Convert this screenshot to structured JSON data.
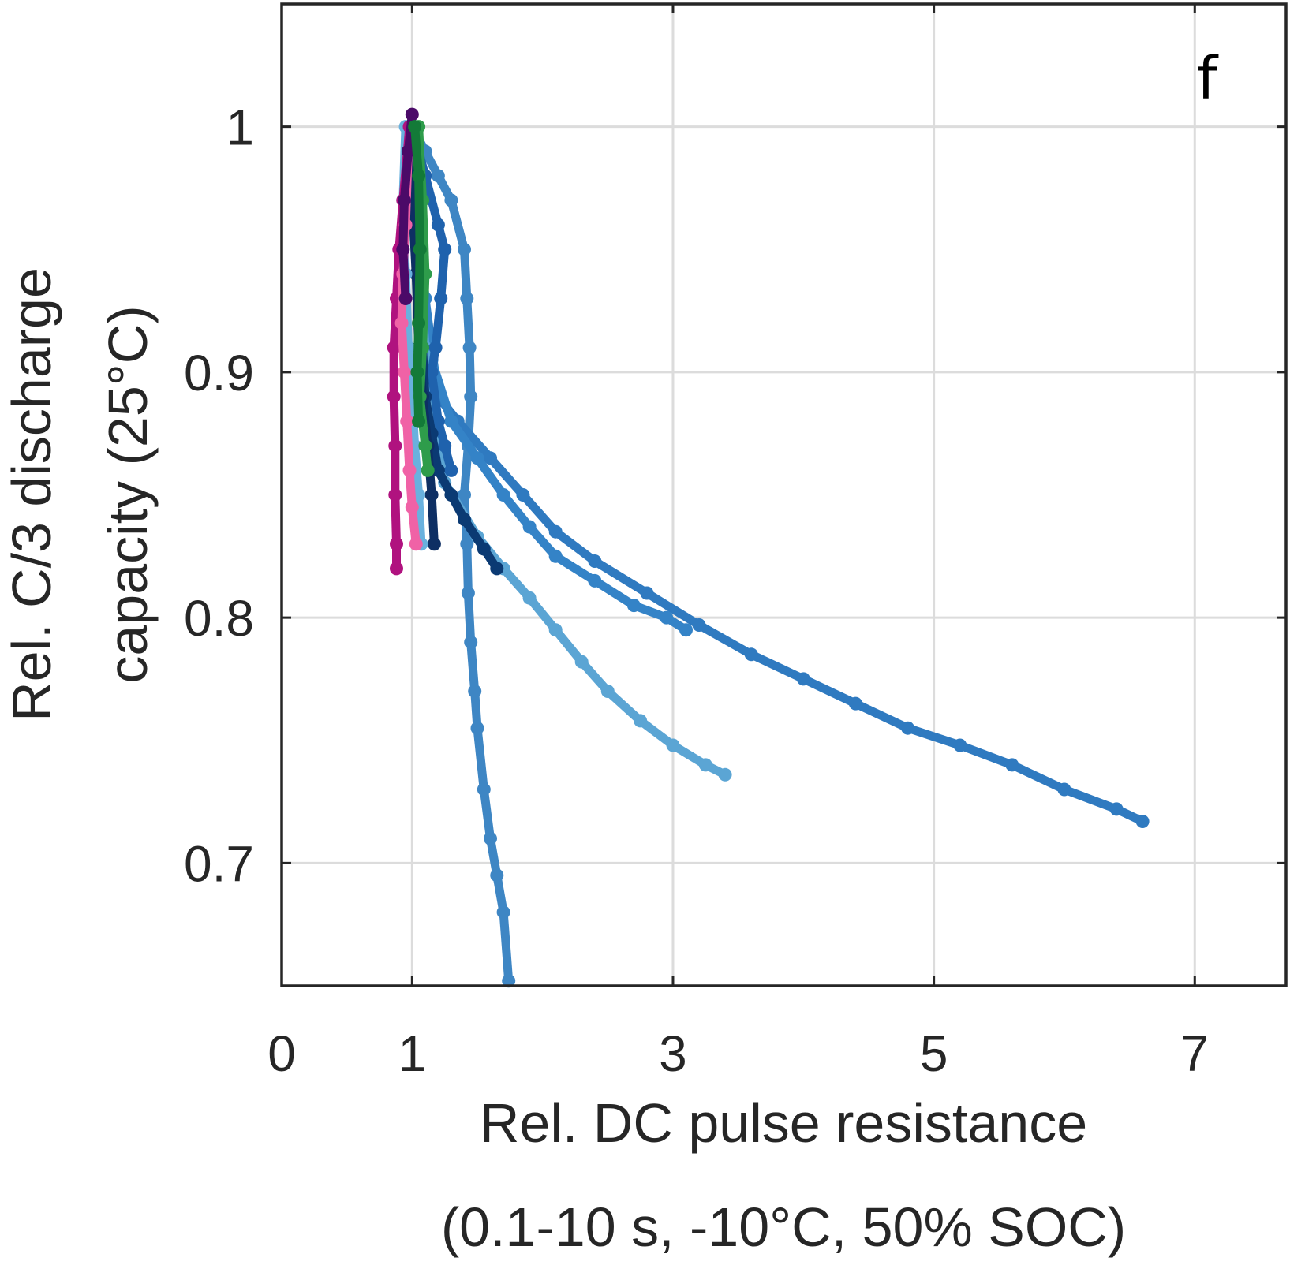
{
  "chart_data": {
    "type": "line",
    "panel_label": "f",
    "xlabel_lines": [
      "Rel. DC pulse resistance",
      "(0.1-10 s, -10°C, 50% SOC)"
    ],
    "ylabel_lines": [
      "Rel. C/3 discharge",
      "capacity (25°C)"
    ],
    "xlim": [
      0,
      7.7
    ],
    "ylim": [
      0.65,
      1.05
    ],
    "x_ticks": [
      0,
      1,
      3,
      5,
      7
    ],
    "x_tick_labels": [
      "0",
      "1",
      "3",
      "5",
      "7"
    ],
    "y_ticks": [
      0.7,
      0.8,
      0.9,
      1.0
    ],
    "y_tick_labels": [
      "0.7",
      "0.8",
      "0.9",
      "1"
    ],
    "grid": true,
    "series": [
      {
        "color": "#3e86c4",
        "points": [
          [
            1.0,
            1.0
          ],
          [
            1.1,
            0.99
          ],
          [
            1.2,
            0.98
          ],
          [
            1.3,
            0.97
          ],
          [
            1.4,
            0.95
          ],
          [
            1.42,
            0.93
          ],
          [
            1.44,
            0.91
          ],
          [
            1.45,
            0.89
          ],
          [
            1.43,
            0.87
          ],
          [
            1.4,
            0.85
          ],
          [
            1.42,
            0.83
          ],
          [
            1.43,
            0.81
          ],
          [
            1.45,
            0.79
          ],
          [
            1.48,
            0.77
          ],
          [
            1.5,
            0.755
          ],
          [
            1.55,
            0.73
          ],
          [
            1.6,
            0.71
          ],
          [
            1.65,
            0.695
          ],
          [
            1.7,
            0.68
          ],
          [
            1.74,
            0.652
          ]
        ]
      },
      {
        "color": "#2f7ac0",
        "points": [
          [
            1.0,
            1.0
          ],
          [
            1.05,
            0.96
          ],
          [
            1.1,
            0.93
          ],
          [
            1.15,
            0.91
          ],
          [
            1.2,
            0.89
          ],
          [
            1.35,
            0.88
          ],
          [
            1.6,
            0.865
          ],
          [
            1.85,
            0.85
          ],
          [
            2.1,
            0.835
          ],
          [
            2.4,
            0.823
          ],
          [
            2.8,
            0.81
          ],
          [
            3.2,
            0.797
          ],
          [
            3.6,
            0.785
          ],
          [
            4.0,
            0.775
          ],
          [
            4.4,
            0.765
          ],
          [
            4.8,
            0.755
          ],
          [
            5.2,
            0.748
          ],
          [
            5.6,
            0.74
          ],
          [
            6.0,
            0.73
          ],
          [
            6.4,
            0.722
          ],
          [
            6.6,
            0.717
          ]
        ]
      },
      {
        "color": "#3483c7",
        "points": [
          [
            1.0,
            1.0
          ],
          [
            1.05,
            0.96
          ],
          [
            1.1,
            0.93
          ],
          [
            1.15,
            0.905
          ],
          [
            1.3,
            0.88
          ],
          [
            1.5,
            0.865
          ],
          [
            1.7,
            0.85
          ],
          [
            1.9,
            0.837
          ],
          [
            2.1,
            0.825
          ],
          [
            2.4,
            0.815
          ],
          [
            2.7,
            0.805
          ],
          [
            2.95,
            0.8
          ],
          [
            3.1,
            0.795
          ]
        ]
      },
      {
        "color": "#5ba5d4",
        "points": [
          [
            1.0,
            1.0
          ],
          [
            1.05,
            0.95
          ],
          [
            1.1,
            0.91
          ],
          [
            1.15,
            0.88
          ],
          [
            1.25,
            0.855
          ],
          [
            1.5,
            0.833
          ],
          [
            1.7,
            0.82
          ],
          [
            1.9,
            0.808
          ],
          [
            2.1,
            0.795
          ],
          [
            2.3,
            0.782
          ],
          [
            2.5,
            0.77
          ],
          [
            2.75,
            0.758
          ],
          [
            3.0,
            0.748
          ],
          [
            3.25,
            0.74
          ],
          [
            3.4,
            0.736
          ]
        ]
      },
      {
        "color": "#1f62ad",
        "points": [
          [
            1.0,
            1.0
          ],
          [
            1.1,
            0.98
          ],
          [
            1.2,
            0.96
          ],
          [
            1.25,
            0.95
          ],
          [
            1.22,
            0.93
          ],
          [
            1.18,
            0.91
          ],
          [
            1.15,
            0.9
          ],
          [
            1.2,
            0.88
          ],
          [
            1.25,
            0.87
          ],
          [
            1.3,
            0.86
          ]
        ]
      },
      {
        "color": "#0b3a73",
        "points": [
          [
            1.0,
            1.0
          ],
          [
            1.02,
            0.97
          ],
          [
            1.05,
            0.94
          ],
          [
            1.08,
            0.91
          ],
          [
            1.1,
            0.89
          ],
          [
            1.15,
            0.875
          ],
          [
            1.2,
            0.86
          ],
          [
            1.3,
            0.85
          ],
          [
            1.4,
            0.84
          ],
          [
            1.55,
            0.828
          ],
          [
            1.65,
            0.82
          ]
        ]
      },
      {
        "color": "#0e2f63",
        "points": [
          [
            0.98,
            1.0
          ],
          [
            1.0,
            0.97
          ],
          [
            1.03,
            0.94
          ],
          [
            1.05,
            0.91
          ],
          [
            1.08,
            0.89
          ],
          [
            1.12,
            0.87
          ],
          [
            1.15,
            0.85
          ],
          [
            1.17,
            0.83
          ]
        ]
      },
      {
        "color": "#69b1de",
        "points": [
          [
            0.95,
            1.0
          ],
          [
            0.93,
            0.97
          ],
          [
            0.95,
            0.94
          ],
          [
            0.97,
            0.91
          ],
          [
            1.0,
            0.89
          ],
          [
            1.02,
            0.87
          ],
          [
            1.05,
            0.85
          ],
          [
            1.07,
            0.83
          ]
        ]
      },
      {
        "color": "#b0127f",
        "points": [
          [
            0.98,
            1.0
          ],
          [
            0.93,
            0.97
          ],
          [
            0.9,
            0.95
          ],
          [
            0.88,
            0.93
          ],
          [
            0.86,
            0.91
          ],
          [
            0.86,
            0.89
          ],
          [
            0.87,
            0.87
          ],
          [
            0.87,
            0.85
          ],
          [
            0.88,
            0.83
          ],
          [
            0.88,
            0.82
          ]
        ]
      },
      {
        "color": "#f062a6",
        "points": [
          [
            0.97,
            0.99
          ],
          [
            0.95,
            0.96
          ],
          [
            0.93,
            0.94
          ],
          [
            0.92,
            0.92
          ],
          [
            0.94,
            0.9
          ],
          [
            0.96,
            0.88
          ],
          [
            0.98,
            0.86
          ],
          [
            1.0,
            0.845
          ],
          [
            1.03,
            0.83
          ]
        ]
      },
      {
        "color": "#4b0a68",
        "points": [
          [
            1.0,
            1.005
          ],
          [
            0.97,
            0.99
          ],
          [
            0.94,
            0.97
          ],
          [
            0.93,
            0.95
          ],
          [
            0.95,
            0.93
          ]
        ]
      },
      {
        "color": "#2e9c4b",
        "points": [
          [
            1.05,
            1.0
          ],
          [
            1.08,
            0.97
          ],
          [
            1.1,
            0.94
          ],
          [
            1.08,
            0.91
          ],
          [
            1.06,
            0.89
          ],
          [
            1.1,
            0.87
          ],
          [
            1.12,
            0.86
          ]
        ]
      },
      {
        "color": "#137a38",
        "points": [
          [
            1.02,
            1.0
          ],
          [
            1.05,
            0.98
          ],
          [
            1.06,
            0.95
          ],
          [
            1.05,
            0.92
          ],
          [
            1.04,
            0.9
          ],
          [
            1.05,
            0.88
          ]
        ]
      }
    ]
  }
}
